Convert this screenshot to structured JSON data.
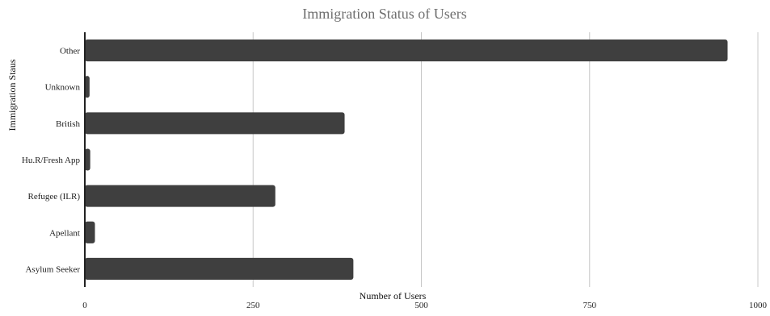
{
  "chart_data": {
    "type": "bar",
    "orientation": "horizontal",
    "title": "Immigration Status of Users",
    "xlabel": "Number of Users",
    "ylabel": "Immigration Staus",
    "categories": [
      "Other",
      "Unknown",
      "British",
      "Hu.R/Fresh App",
      "Refugee (ILR)",
      "Apellant",
      "Asylum Seeker"
    ],
    "values": [
      955,
      7,
      386,
      8,
      283,
      15,
      399
    ],
    "xlim": [
      0,
      1000
    ],
    "xticks": [
      0,
      250,
      500,
      750,
      1000
    ],
    "grid": true,
    "legend": "none",
    "colors": {
      "bar": "#3f3f3f",
      "grid": "#c8c8c8",
      "axis": "#222222",
      "title": "#6f6f6f"
    }
  }
}
